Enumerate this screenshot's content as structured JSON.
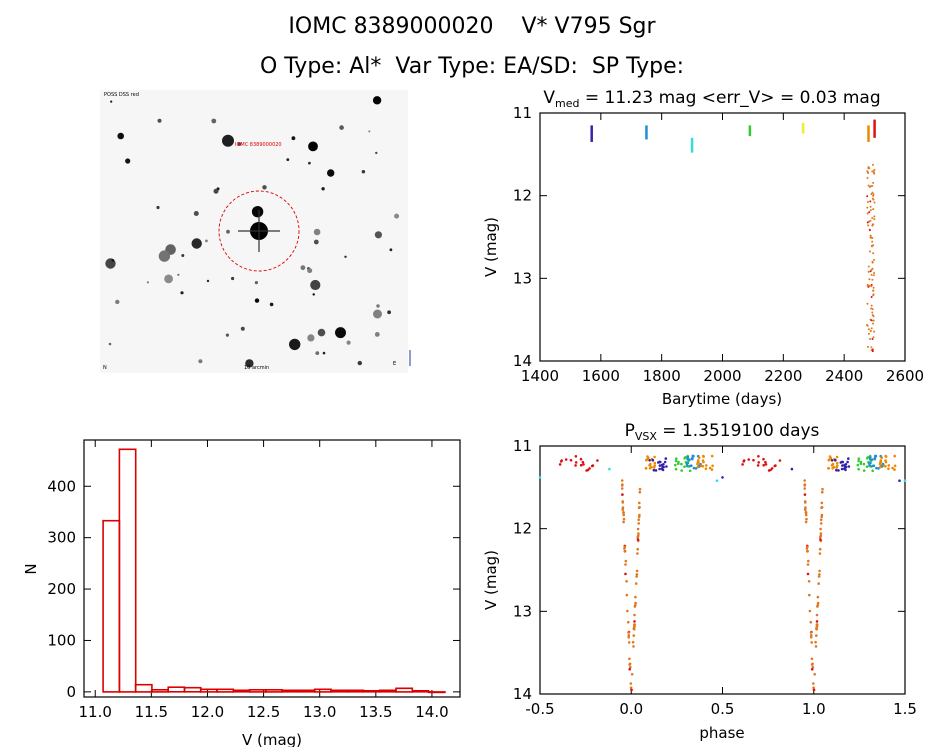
{
  "header": {
    "title_line1": "IOMC 8389000020    V* V795 Sgr",
    "title_line2": "O Type: Al*  Var Type: EA/SD:  SP Type:"
  },
  "image_panel": {
    "label_top_left": "POSS DSS red",
    "label_target": "IOMC 8389000020",
    "label_bottom_left": "N",
    "label_bottom_center": "10 arcmin",
    "label_bottom_right": "E"
  },
  "colors": {
    "hist": "#dd0000",
    "orange": "#e07820",
    "red": "#dd1111"
  },
  "chart_data": [
    {
      "type": "scatter",
      "id": "lightcurve",
      "title": "V_med = 11.23 mag <err_V> = 0.03 mag",
      "title_parts": {
        "main": "V",
        "sub": "med",
        "rest": " = 11.23 mag <err_V> = 0.03 mag"
      },
      "xlabel": "Barytime (days)",
      "ylabel": "V (mag)",
      "xlim": [
        1400,
        2600
      ],
      "ylim": [
        14,
        11
      ],
      "xticks": [
        1400,
        1600,
        1800,
        2000,
        2200,
        2400,
        2600
      ],
      "yticks": [
        11,
        12,
        13,
        14
      ],
      "groups": [
        {
          "color": "#3322aa",
          "x": 1570,
          "ymin": 11.15,
          "ymax": 11.35
        },
        {
          "color": "#1f8fd6",
          "x": 1750,
          "ymin": 11.15,
          "ymax": 11.32
        },
        {
          "color": "#33dddd",
          "x": 1900,
          "ymin": 11.3,
          "ymax": 11.48
        },
        {
          "color": "#33cc33",
          "x": 2090,
          "ymin": 11.15,
          "ymax": 11.28
        },
        {
          "color": "#eeee33",
          "x": 2265,
          "ymin": 11.12,
          "ymax": 11.25
        },
        {
          "color": "#ee8800",
          "x": 2480,
          "ymin": 11.15,
          "ymax": 11.35
        },
        {
          "color": "#dd1111",
          "x": 2500,
          "ymin": 11.08,
          "ymax": 11.3
        }
      ],
      "eclipse": {
        "x_range": [
          2475,
          2500
        ],
        "y_range": [
          11.6,
          13.95
        ]
      }
    },
    {
      "type": "bar",
      "id": "histogram",
      "xlabel": "V (mag)",
      "ylabel": "N",
      "xlim": [
        10.9,
        14.25
      ],
      "ylim": [
        -10,
        490
      ],
      "xticks": [
        11.0,
        11.5,
        12.0,
        12.5,
        13.0,
        13.5,
        14.0
      ],
      "yticks": [
        0,
        100,
        200,
        300,
        400
      ],
      "bin_edges": [
        11.07,
        11.215,
        11.36,
        11.505,
        11.65,
        11.795,
        11.94,
        12.085,
        12.23,
        12.375,
        12.52,
        12.665,
        12.81,
        12.955,
        13.1,
        13.245,
        13.39,
        13.535,
        13.68,
        13.825,
        13.97,
        14.115
      ],
      "values": [
        333,
        472,
        14,
        4,
        9,
        8,
        5,
        5,
        3,
        4,
        4,
        3,
        3,
        5,
        3,
        3,
        2,
        3,
        7,
        2,
        0
      ]
    },
    {
      "type": "scatter",
      "id": "phased",
      "title": "P_VSX = 1.3519100 days",
      "title_parts": {
        "main": "P",
        "sub": "VSX",
        "rest": " = 1.3519100 days"
      },
      "xlabel": "phase",
      "ylabel": "V (mag)",
      "xlim": [
        -0.5,
        1.5
      ],
      "ylim": [
        14,
        11
      ],
      "xticks": [
        -0.5,
        0.0,
        0.5,
        1.0,
        1.5
      ],
      "yticks": [
        11,
        12,
        13,
        14
      ],
      "period": 1.35191
    }
  ]
}
